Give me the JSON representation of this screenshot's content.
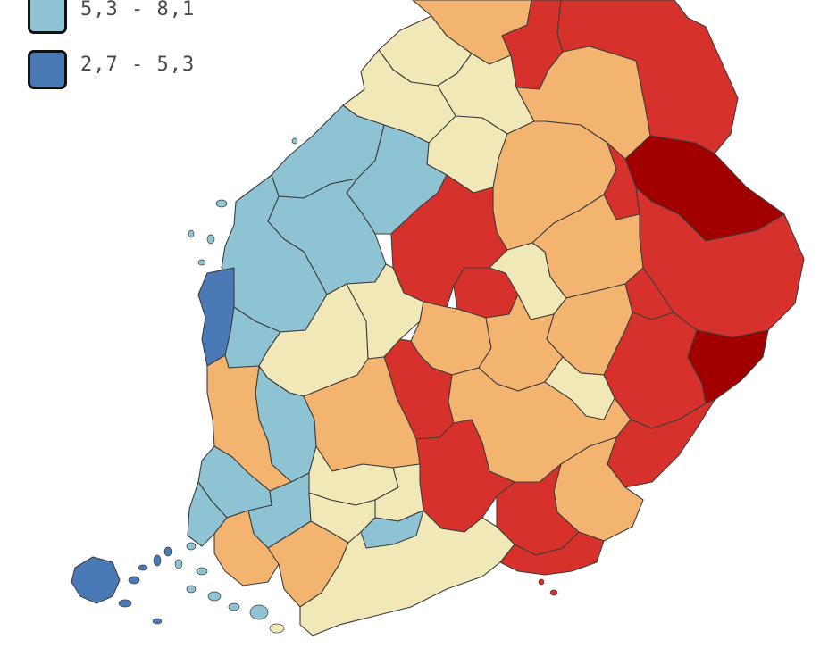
{
  "legend": {
    "items": [
      {
        "label": "5,3 - 8,1",
        "color": "#8ec3d3"
      },
      {
        "label": "2,7 - 5,3",
        "color": "#4a7ab6"
      }
    ]
  },
  "palette": {
    "darkest_red": "#a20000",
    "red": "#d7312b",
    "orange": "#f3b46f",
    "pale_yellow": "#f0e8b6",
    "light_blue": "#8ec3d3",
    "blue": "#4a7ab6"
  },
  "map": {
    "regions": [
      {
        "id": "reg-01",
        "class_color": "#f3b46f"
      },
      {
        "id": "reg-02",
        "class_color": "#d7312b"
      },
      {
        "id": "reg-03",
        "class_color": "#d7312b"
      },
      {
        "id": "reg-04",
        "class_color": "#f0e8b6"
      },
      {
        "id": "reg-05",
        "class_color": "#f0e8b6"
      },
      {
        "id": "reg-06",
        "class_color": "#f3b46f"
      },
      {
        "id": "reg-07",
        "class_color": "#f0e8b6"
      },
      {
        "id": "reg-08",
        "class_color": "#f0e8b6"
      },
      {
        "id": "reg-09",
        "class_color": "#f3b46f"
      },
      {
        "id": "reg-10",
        "class_color": "#d7312b"
      },
      {
        "id": "reg-11",
        "class_color": "#a20000"
      },
      {
        "id": "reg-12",
        "class_color": "#d7312b"
      },
      {
        "id": "reg-13",
        "class_color": "#8ec3d3"
      },
      {
        "id": "reg-14",
        "class_color": "#8ec3d3"
      },
      {
        "id": "reg-15",
        "class_color": "#8ec3d3"
      },
      {
        "id": "reg-16",
        "class_color": "#8ec3d3"
      },
      {
        "id": "reg-17",
        "class_color": "#d7312b"
      },
      {
        "id": "reg-18",
        "class_color": "#d7312b"
      },
      {
        "id": "reg-19",
        "class_color": "#f0e8b6"
      },
      {
        "id": "reg-20",
        "class_color": "#f3b46f"
      },
      {
        "id": "reg-21",
        "class_color": "#d7312b"
      },
      {
        "id": "reg-22",
        "class_color": "#d7312b"
      },
      {
        "id": "reg-23",
        "class_color": "#f3b46f"
      },
      {
        "id": "reg-24",
        "class_color": "#a20000"
      },
      {
        "id": "reg-25",
        "class_color": "#4a7ab6"
      },
      {
        "id": "reg-26",
        "class_color": "#8ec3d3"
      },
      {
        "id": "reg-27",
        "class_color": "#f0e8b6"
      },
      {
        "id": "reg-28",
        "class_color": "#f0e8b6"
      },
      {
        "id": "reg-29",
        "class_color": "#f3b46f"
      },
      {
        "id": "reg-30",
        "class_color": "#f3b46f"
      },
      {
        "id": "reg-31",
        "class_color": "#d7312b"
      },
      {
        "id": "reg-32",
        "class_color": "#f3b46f"
      },
      {
        "id": "reg-33",
        "class_color": "#f0e8b6"
      },
      {
        "id": "reg-34",
        "class_color": "#d7312b"
      },
      {
        "id": "reg-35",
        "class_color": "#f3b46f"
      },
      {
        "id": "reg-36",
        "class_color": "#8ec3d3"
      },
      {
        "id": "reg-37",
        "class_color": "#f3b46f"
      },
      {
        "id": "reg-38",
        "class_color": "#d7312b"
      },
      {
        "id": "reg-39",
        "class_color": "#d7312b"
      },
      {
        "id": "reg-40",
        "class_color": "#f3b46f"
      },
      {
        "id": "reg-41",
        "class_color": "#8ec3d3"
      },
      {
        "id": "reg-42",
        "class_color": "#f0e8b6"
      },
      {
        "id": "reg-43",
        "class_color": "#f0e8b6"
      },
      {
        "id": "reg-44",
        "class_color": "#8ec3d3"
      },
      {
        "id": "reg-45",
        "class_color": "#8ec3d3"
      },
      {
        "id": "reg-46",
        "class_color": "#f3b46f"
      },
      {
        "id": "reg-47",
        "class_color": "#f3b46f"
      },
      {
        "id": "reg-48",
        "class_color": "#f0e8b6"
      },
      {
        "id": "reg-49",
        "class_color": "#f0e8b6"
      },
      {
        "id": "reg-50",
        "class_color": "#d7312b"
      },
      {
        "id": "reg-51",
        "class_color": "#4a7ab6"
      },
      {
        "id": "reg-52",
        "class_color": "#8ec3d3"
      }
    ]
  }
}
